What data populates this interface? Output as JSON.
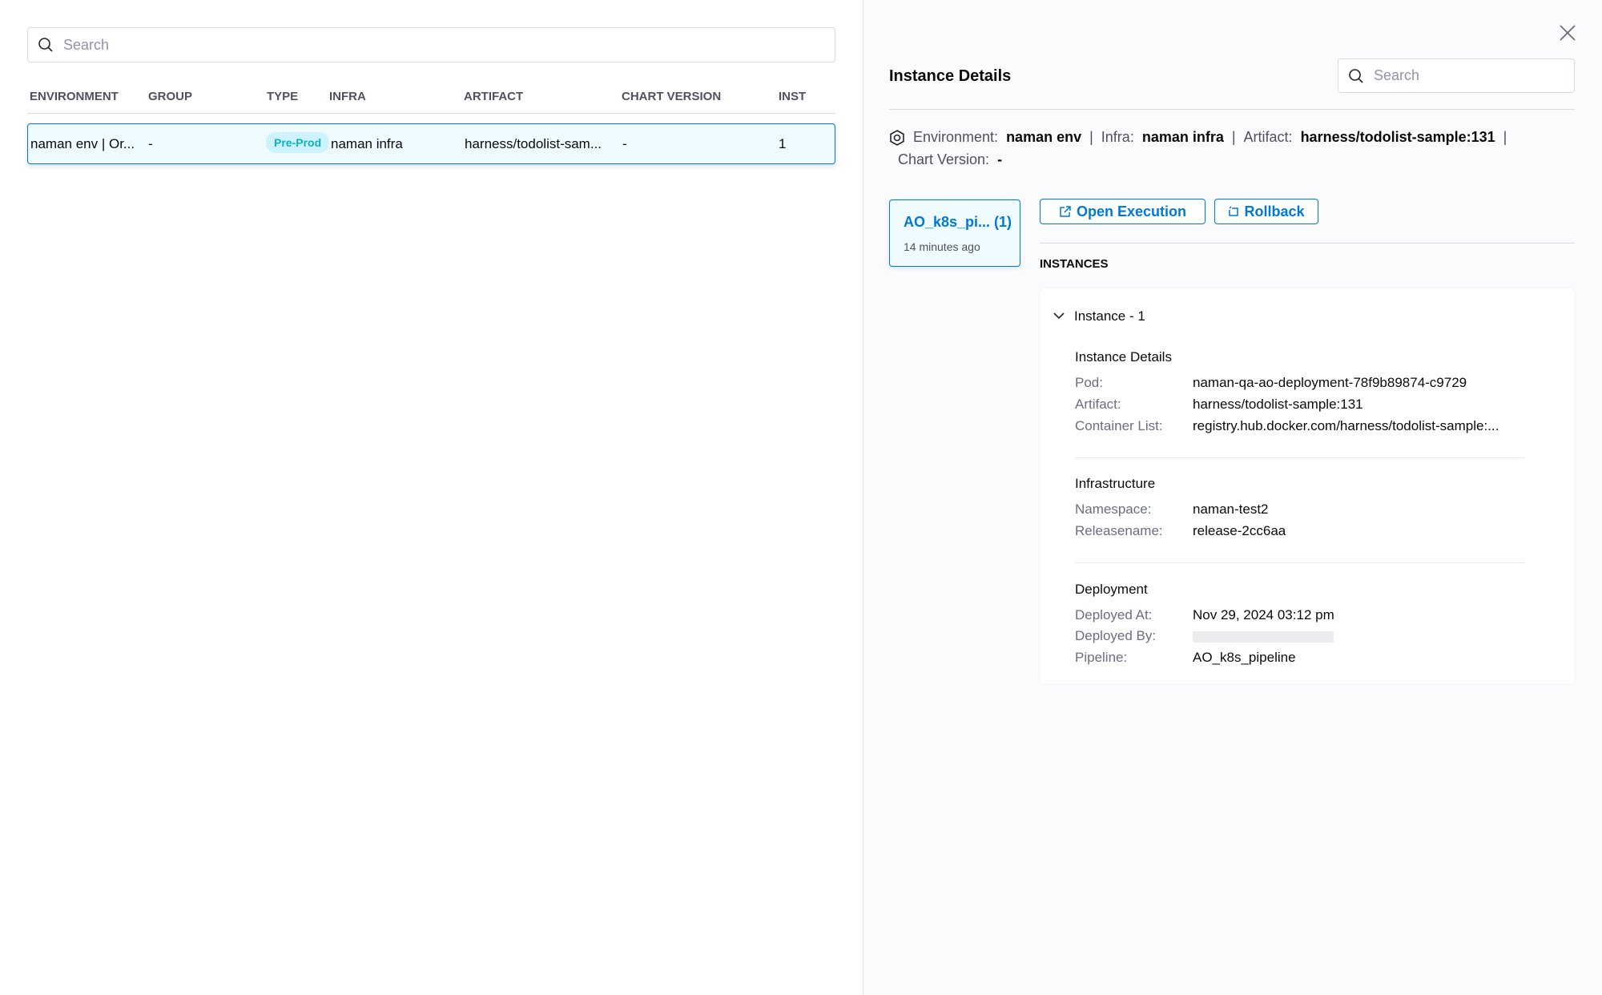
{
  "left": {
    "search_placeholder": "Search",
    "columns": [
      "ENVIRONMENT",
      "GROUP",
      "TYPE",
      "INFRA",
      "ARTIFACT",
      "CHART VERSION",
      "INST"
    ],
    "rows": [
      {
        "environment": "naman env | Or...",
        "group": "-",
        "type": "Pre-Prod",
        "infra": "naman infra",
        "artifact": "harness/todolist-sam...",
        "chart_version": "-",
        "inst": "1"
      }
    ]
  },
  "right": {
    "title": "Instance Details",
    "search_placeholder": "Search",
    "summary": {
      "env_label": "Environment:",
      "env": "naman env",
      "infra_label": "Infra:",
      "infra": "naman infra",
      "artifact_label": "Artifact:",
      "artifact": "harness/todolist-sample:131",
      "chart_label": "Chart Version:",
      "chart": "-"
    },
    "pipeline_card": {
      "name": "AO_k8s_pi... (1)",
      "time": "14 minutes ago"
    },
    "open_execution": "Open Execution",
    "rollback": "Rollback",
    "instances_heading": "INSTANCES",
    "instance": {
      "title": "Instance - 1",
      "details_heading": "Instance Details",
      "pod_label": "Pod:",
      "pod": "naman-qa-ao-deployment-78f9b89874-c9729",
      "artifact_label": "Artifact:",
      "artifact": "harness/todolist-sample:131",
      "container_label": "Container List:",
      "container": "registry.hub.docker.com/harness/todolist-sample:...",
      "infra_heading": "Infrastructure",
      "ns_label": "Namespace:",
      "ns": "naman-test2",
      "release_label": "Releasename:",
      "release": "release-2cc6aa",
      "deploy_heading": "Deployment",
      "at_label": "Deployed At:",
      "at": "Nov 29, 2024 03:12 pm",
      "by_label": "Deployed By:",
      "pipeline_label": "Pipeline:",
      "pipeline": "AO_k8s_pipeline"
    }
  },
  "colors": {
    "accent": "#0278d5",
    "badge_bg": "#cdf4fe",
    "badge_text": "#0ab3bf"
  }
}
